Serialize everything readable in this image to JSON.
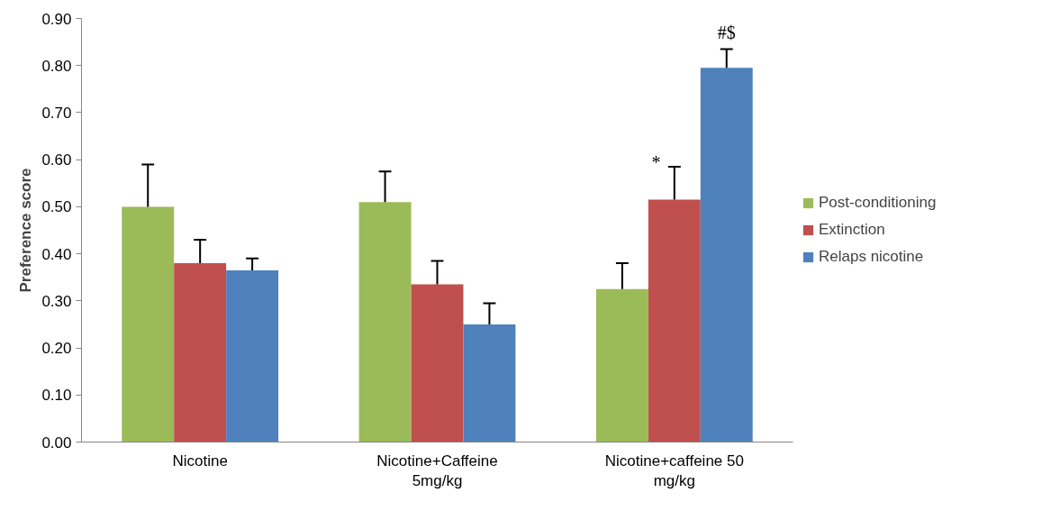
{
  "chart_data": {
    "type": "bar",
    "ylabel": "Preference score",
    "categories": [
      "Nicotine",
      "Nicotine+Caffeine\n5mg/kg",
      "Nicotine+caffeine 50\nmg/kg"
    ],
    "series": [
      {
        "name": "Post-conditioning",
        "color": "#9bbb59",
        "values": [
          0.5,
          0.51,
          0.325
        ],
        "errors": [
          [
            0.5,
            0.59
          ],
          [
            0.51,
            0.575
          ],
          [
            0.325,
            0.38
          ]
        ]
      },
      {
        "name": "Extinction",
        "color": "#c0504d",
        "values": [
          0.38,
          0.335,
          0.515
        ],
        "errors": [
          [
            0.38,
            0.43
          ],
          [
            0.335,
            0.385
          ],
          [
            0.515,
            0.585
          ]
        ]
      },
      {
        "name": "Relaps nicotine",
        "color": "#4f81bd",
        "values": [
          0.365,
          0.25,
          0.795
        ],
        "errors": [
          [
            0.365,
            0.39
          ],
          [
            0.25,
            0.295
          ],
          [
            0.795,
            0.835
          ]
        ]
      }
    ],
    "ylim": [
      0,
      0.9
    ],
    "yticks": [
      {
        "value": 0,
        "label": "0.00"
      },
      {
        "value": 0.1,
        "label": "0.10"
      },
      {
        "value": 0.2,
        "label": "0.20"
      },
      {
        "value": 0.3,
        "label": "0.30"
      },
      {
        "value": 0.4,
        "label": "0.40"
      },
      {
        "value": 0.5,
        "label": "0.50"
      },
      {
        "value": 0.6,
        "label": "0.60"
      },
      {
        "value": 0.7,
        "label": "0.70"
      },
      {
        "value": 0.8,
        "label": "0.80"
      },
      {
        "value": 0.9,
        "label": "0.90"
      }
    ],
    "annotations": [
      "*",
      "#$"
    ],
    "grid": false,
    "legend": "right"
  }
}
